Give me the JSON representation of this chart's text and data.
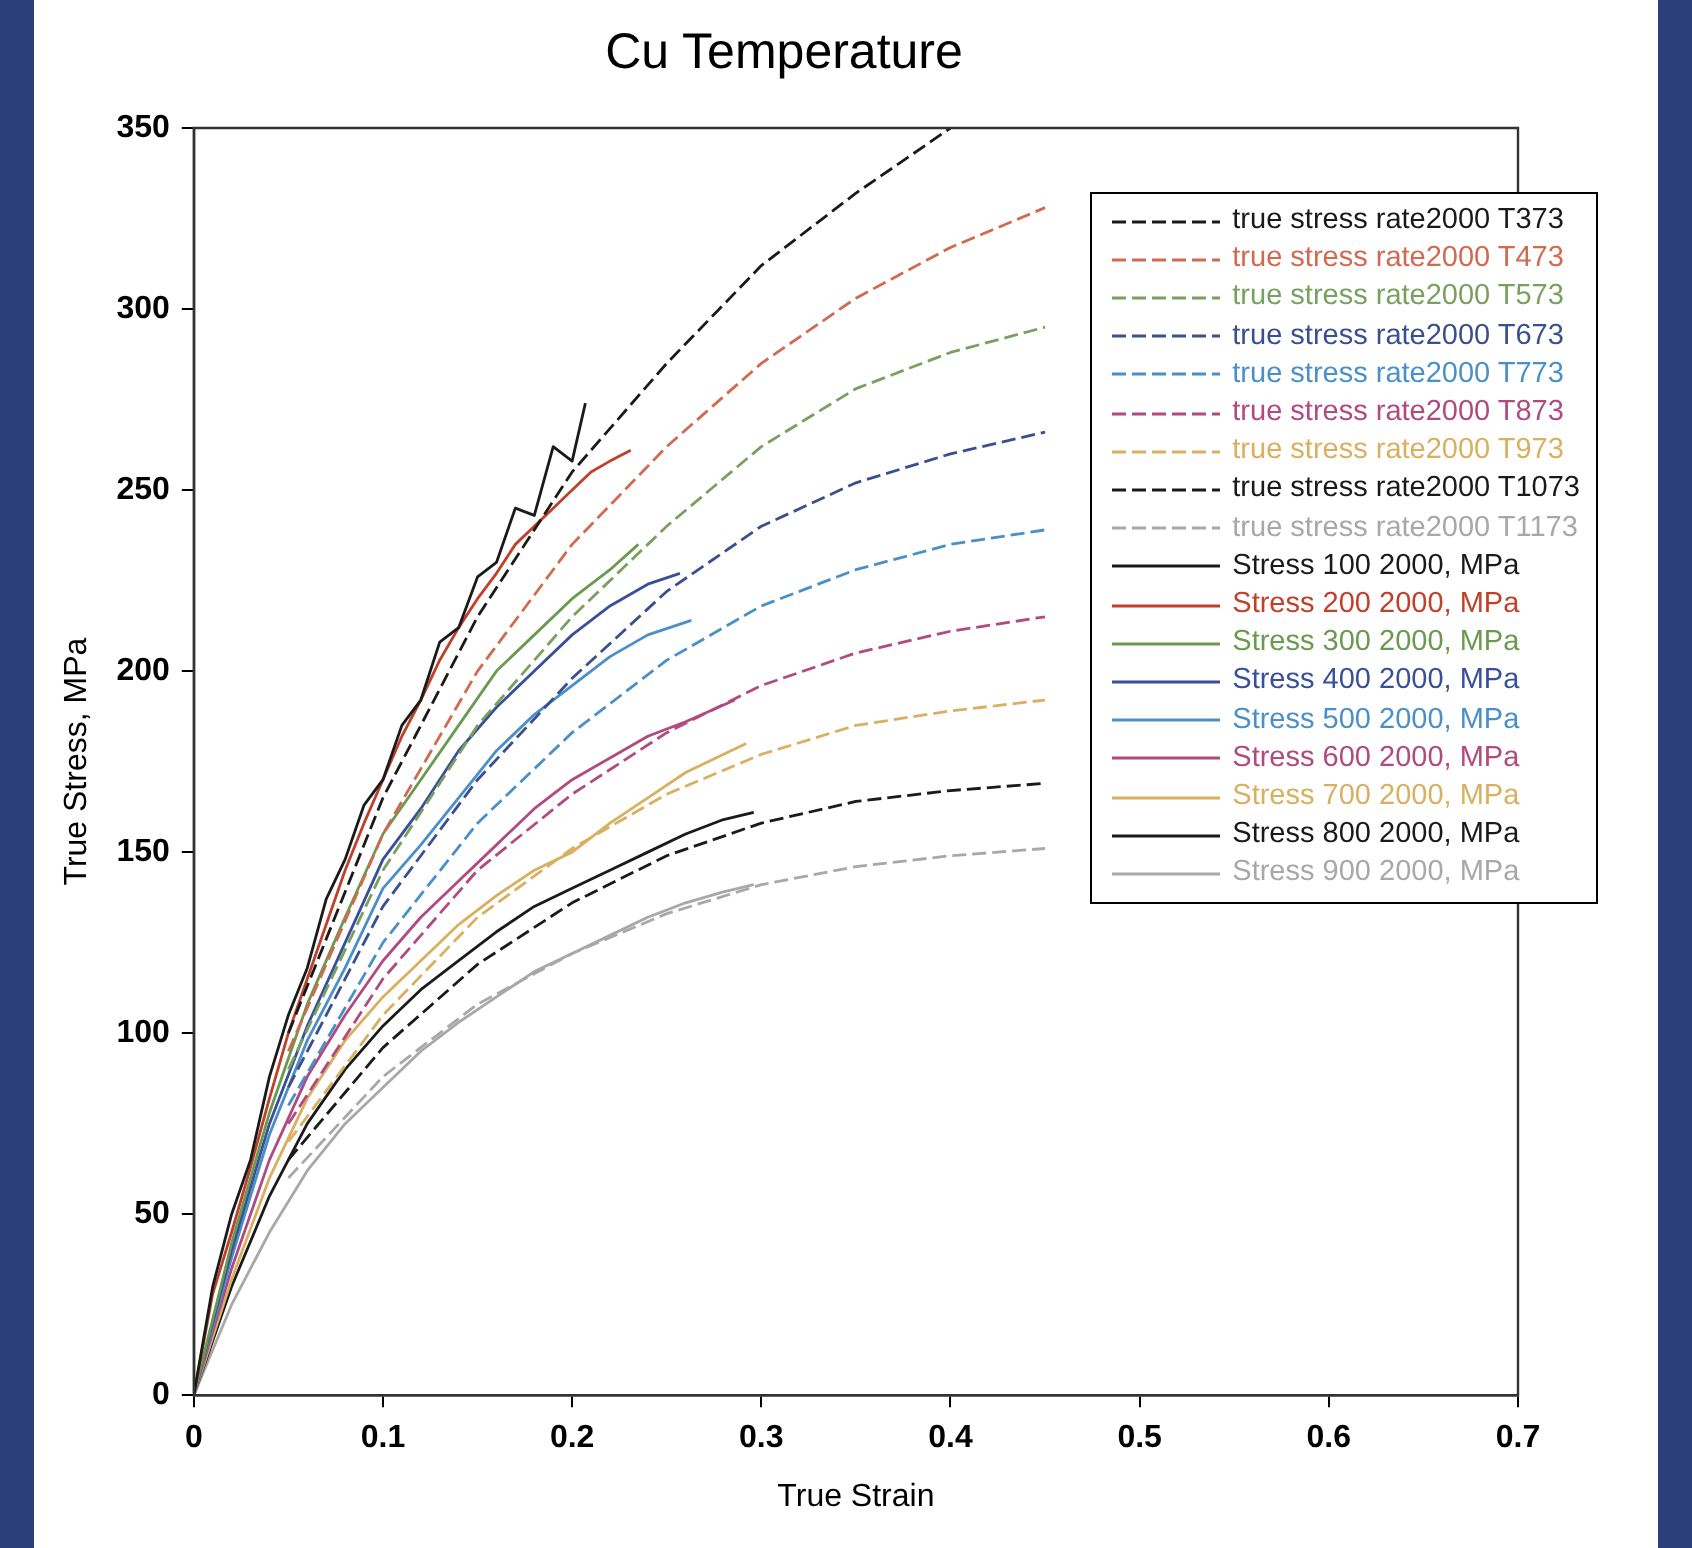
{
  "chart_data": {
    "type": "line",
    "title": "Cu Temperature",
    "xlabel": "True Strain",
    "ylabel": "True Stress, MPa",
    "xlim": [
      0,
      0.7
    ],
    "xticks": [
      0,
      0.1,
      0.2,
      0.3,
      0.4,
      0.5,
      0.6,
      0.7
    ],
    "ylim": [
      0,
      350
    ],
    "yticks": [
      0,
      50,
      100,
      150,
      200,
      250,
      300,
      350
    ],
    "grid": false,
    "legend": "top right",
    "marker": "none",
    "series": [
      {
        "name": "true stress rate2000 T373",
        "color": "#1a1a1a",
        "line_style": "dashed",
        "x": [
          0.05,
          0.1,
          0.15,
          0.2,
          0.25,
          0.3,
          0.35,
          0.4
        ],
        "values": [
          100,
          165,
          215,
          255,
          285,
          312,
          332,
          350
        ]
      },
      {
        "name": "true stress rate2000 T473",
        "color": "#d06a50",
        "line_style": "dashed",
        "x": [
          0.05,
          0.1,
          0.15,
          0.2,
          0.25,
          0.3,
          0.35,
          0.4,
          0.45
        ],
        "values": [
          95,
          155,
          200,
          235,
          262,
          285,
          303,
          317,
          328
        ]
      },
      {
        "name": "true stress rate2000 T573",
        "color": "#7aa060",
        "line_style": "dashed",
        "x": [
          0.05,
          0.1,
          0.15,
          0.2,
          0.25,
          0.3,
          0.35,
          0.4,
          0.45
        ],
        "values": [
          90,
          145,
          185,
          215,
          240,
          262,
          278,
          288,
          295
        ]
      },
      {
        "name": "true stress rate2000 T673",
        "color": "#3a4f8f",
        "line_style": "dashed",
        "x": [
          0.05,
          0.1,
          0.15,
          0.2,
          0.25,
          0.3,
          0.35,
          0.4,
          0.45
        ],
        "values": [
          85,
          135,
          170,
          198,
          222,
          240,
          252,
          260,
          266
        ]
      },
      {
        "name": "true stress rate2000 T773",
        "color": "#4a90c8",
        "line_style": "dashed",
        "x": [
          0.05,
          0.1,
          0.15,
          0.2,
          0.25,
          0.3,
          0.35,
          0.4,
          0.45
        ],
        "values": [
          80,
          125,
          158,
          183,
          203,
          218,
          228,
          235,
          239
        ]
      },
      {
        "name": "true stress rate2000 T873",
        "color": "#b04a80",
        "line_style": "dashed",
        "x": [
          0.05,
          0.1,
          0.15,
          0.2,
          0.25,
          0.3,
          0.35,
          0.4,
          0.45
        ],
        "values": [
          75,
          115,
          145,
          166,
          183,
          196,
          205,
          211,
          215
        ]
      },
      {
        "name": "true stress rate2000 T973",
        "color": "#d8b060",
        "line_style": "dashed",
        "x": [
          0.05,
          0.1,
          0.15,
          0.2,
          0.25,
          0.3,
          0.35,
          0.4,
          0.45
        ],
        "values": [
          70,
          105,
          132,
          151,
          166,
          177,
          185,
          189,
          192
        ]
      },
      {
        "name": "true stress rate2000 T1073",
        "color": "#1a1a1a",
        "line_style": "dashed",
        "x": [
          0.05,
          0.1,
          0.15,
          0.2,
          0.25,
          0.3,
          0.35,
          0.4,
          0.45
        ],
        "values": [
          65,
          96,
          119,
          136,
          149,
          158,
          164,
          167,
          169
        ]
      },
      {
        "name": "true stress rate2000 T1173",
        "color": "#a8a8a8",
        "line_style": "dashed",
        "x": [
          0.05,
          0.1,
          0.15,
          0.2,
          0.25,
          0.3,
          0.35,
          0.4,
          0.45
        ],
        "values": [
          60,
          88,
          108,
          122,
          133,
          141,
          146,
          149,
          151
        ]
      },
      {
        "name": "Stress 100 2000, MPa",
        "color": "#1a1a1a",
        "line_style": "solid",
        "x": [
          0,
          0.01,
          0.02,
          0.03,
          0.04,
          0.05,
          0.06,
          0.07,
          0.08,
          0.09,
          0.1,
          0.11,
          0.12,
          0.13,
          0.14,
          0.15,
          0.16,
          0.17,
          0.18,
          0.19,
          0.2,
          0.207
        ],
        "values": [
          0,
          30,
          50,
          65,
          88,
          105,
          118,
          137,
          148,
          163,
          170,
          185,
          192,
          208,
          212,
          226,
          230,
          245,
          243,
          262,
          258,
          274
        ]
      },
      {
        "name": "Stress 200 2000, MPa",
        "color": "#c0402a",
        "line_style": "solid",
        "x": [
          0,
          0.01,
          0.02,
          0.03,
          0.04,
          0.05,
          0.06,
          0.07,
          0.08,
          0.09,
          0.1,
          0.11,
          0.12,
          0.13,
          0.14,
          0.15,
          0.16,
          0.17,
          0.18,
          0.19,
          0.2,
          0.21,
          0.22,
          0.231
        ],
        "values": [
          0,
          28,
          45,
          63,
          82,
          100,
          115,
          130,
          145,
          158,
          170,
          182,
          192,
          203,
          212,
          220,
          227,
          235,
          240,
          245,
          250,
          255,
          258,
          261
        ]
      },
      {
        "name": "Stress 300 2000, MPa",
        "color": "#6a9a50",
        "line_style": "solid",
        "x": [
          0,
          0.02,
          0.04,
          0.06,
          0.08,
          0.1,
          0.12,
          0.14,
          0.16,
          0.18,
          0.2,
          0.22,
          0.235
        ],
        "values": [
          0,
          42,
          78,
          108,
          132,
          155,
          170,
          185,
          200,
          210,
          220,
          228,
          235
        ]
      },
      {
        "name": "Stress 400 2000, MPa",
        "color": "#3a4f9a",
        "line_style": "solid",
        "x": [
          0,
          0.02,
          0.04,
          0.06,
          0.08,
          0.1,
          0.12,
          0.14,
          0.16,
          0.18,
          0.2,
          0.22,
          0.24,
          0.257
        ],
        "values": [
          0,
          40,
          75,
          102,
          125,
          148,
          162,
          178,
          190,
          200,
          210,
          218,
          224,
          227
        ]
      },
      {
        "name": "Stress 500 2000, MPa",
        "color": "#4a90c8",
        "line_style": "solid",
        "x": [
          0,
          0.02,
          0.04,
          0.06,
          0.08,
          0.1,
          0.12,
          0.14,
          0.16,
          0.18,
          0.2,
          0.22,
          0.24,
          0.263
        ],
        "values": [
          0,
          38,
          72,
          98,
          118,
          140,
          152,
          165,
          178,
          188,
          196,
          204,
          210,
          214
        ]
      },
      {
        "name": "Stress 600 2000, MPa",
        "color": "#b04a80",
        "line_style": "solid",
        "x": [
          0,
          0.02,
          0.04,
          0.06,
          0.08,
          0.1,
          0.12,
          0.14,
          0.16,
          0.18,
          0.2,
          0.22,
          0.24,
          0.26,
          0.286
        ],
        "values": [
          0,
          35,
          65,
          88,
          105,
          120,
          132,
          142,
          152,
          162,
          170,
          176,
          182,
          186,
          192
        ]
      },
      {
        "name": "Stress 700 2000, MPa",
        "color": "#d8b060",
        "line_style": "solid",
        "x": [
          0,
          0.02,
          0.04,
          0.06,
          0.08,
          0.1,
          0.12,
          0.14,
          0.16,
          0.18,
          0.2,
          0.22,
          0.24,
          0.26,
          0.292
        ],
        "values": [
          0,
          32,
          60,
          82,
          98,
          110,
          120,
          130,
          138,
          145,
          150,
          158,
          165,
          172,
          180
        ]
      },
      {
        "name": "Stress 800 2000, MPa",
        "color": "#1a1a1a",
        "line_style": "solid",
        "x": [
          0,
          0.02,
          0.04,
          0.06,
          0.08,
          0.1,
          0.12,
          0.14,
          0.16,
          0.18,
          0.2,
          0.22,
          0.24,
          0.26,
          0.28,
          0.296
        ],
        "values": [
          0,
          30,
          55,
          75,
          90,
          102,
          112,
          120,
          128,
          135,
          140,
          145,
          150,
          155,
          159,
          161
        ]
      },
      {
        "name": "Stress 900 2000, MPa",
        "color": "#a8a8a8",
        "line_style": "solid",
        "x": [
          0,
          0.02,
          0.04,
          0.06,
          0.08,
          0.1,
          0.12,
          0.14,
          0.16,
          0.18,
          0.2,
          0.22,
          0.24,
          0.26,
          0.28,
          0.296
        ],
        "values": [
          0,
          25,
          45,
          62,
          75,
          85,
          95,
          103,
          110,
          117,
          122,
          127,
          132,
          136,
          139,
          141
        ]
      }
    ]
  }
}
